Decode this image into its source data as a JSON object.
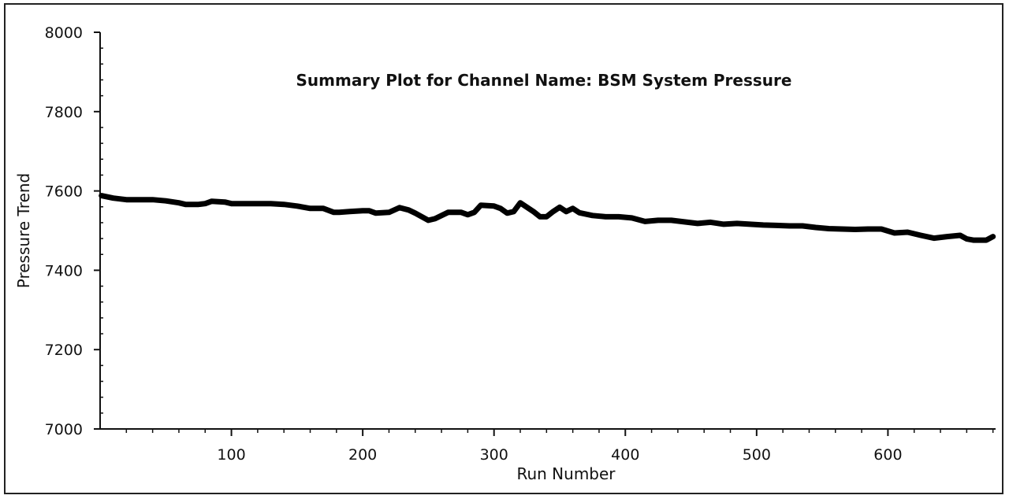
{
  "chart_data": {
    "type": "line",
    "title": "Summary Plot for Channel Name: BSM System Pressure",
    "xlabel": "Run Number",
    "ylabel": "Pressure Trend",
    "xlim": [
      0,
      682
    ],
    "ylim": [
      7000,
      8000
    ],
    "x_ticks": [
      100,
      200,
      300,
      400,
      500,
      600
    ],
    "y_ticks": [
      7000,
      7200,
      7400,
      7600,
      7800,
      8000
    ],
    "x_minor_step": 20,
    "y_minor_step": 40,
    "grid": false,
    "legend": "none",
    "series_color": "#000000",
    "series": [
      {
        "x": [
          1,
          10,
          20,
          30,
          40,
          50,
          60,
          65,
          75,
          80,
          85,
          95,
          100,
          110,
          120,
          130,
          140,
          150,
          160,
          170,
          178,
          182,
          190,
          200,
          205,
          210,
          220,
          228,
          235,
          240,
          250,
          255,
          265,
          275,
          280,
          285,
          290,
          300,
          305,
          310,
          315,
          320,
          330,
          335,
          340,
          345,
          350,
          355,
          360,
          365,
          375,
          385,
          395,
          405,
          415,
          425,
          435,
          445,
          455,
          465,
          475,
          485,
          495,
          505,
          515,
          525,
          535,
          545,
          555,
          565,
          575,
          585,
          595,
          605,
          615,
          625,
          635,
          645,
          655,
          660,
          665,
          675,
          680
        ],
        "y": [
          7588,
          7582,
          7578,
          7578,
          7578,
          7575,
          7570,
          7566,
          7566,
          7568,
          7574,
          7572,
          7568,
          7568,
          7568,
          7568,
          7566,
          7562,
          7556,
          7556,
          7546,
          7546,
          7548,
          7550,
          7550,
          7544,
          7546,
          7558,
          7552,
          7544,
          7526,
          7530,
          7546,
          7546,
          7540,
          7546,
          7564,
          7562,
          7556,
          7544,
          7548,
          7570,
          7548,
          7535,
          7535,
          7548,
          7559,
          7548,
          7556,
          7545,
          7538,
          7535,
          7535,
          7532,
          7523,
          7526,
          7526,
          7522,
          7518,
          7521,
          7516,
          7518,
          7516,
          7514,
          7513,
          7512,
          7512,
          7508,
          7505,
          7504,
          7503,
          7504,
          7504,
          7494,
          7496,
          7488,
          7481,
          7485,
          7488,
          7479,
          7476,
          7476,
          7485
        ]
      }
    ]
  }
}
